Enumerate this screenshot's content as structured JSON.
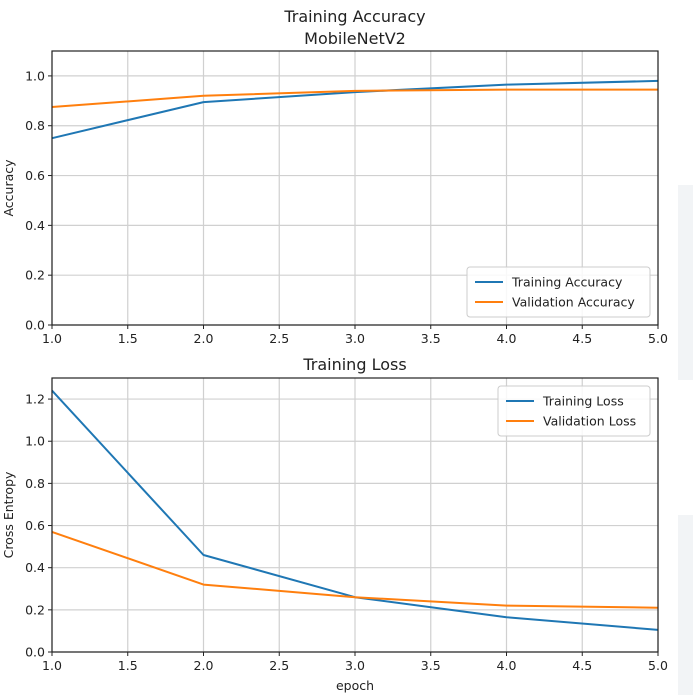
{
  "chart_data": [
    {
      "type": "line",
      "title": "Training Accuracy\nMobileNetV2",
      "title_lines": [
        "Training Accuracy",
        "MobileNetV2"
      ],
      "xlabel": "",
      "ylabel": "Accuracy",
      "xlim": [
        1.0,
        5.0
      ],
      "ylim": [
        0.0,
        1.1
      ],
      "xticks": [
        1.0,
        1.5,
        2.0,
        2.5,
        3.0,
        3.5,
        4.0,
        4.5,
        5.0
      ],
      "xtick_labels": [
        "1.0",
        "1.5",
        "2.0",
        "2.5",
        "3.0",
        "3.5",
        "4.0",
        "4.5",
        "5.0"
      ],
      "yticks": [
        0.0,
        0.2,
        0.4,
        0.6,
        0.8,
        1.0
      ],
      "ytick_labels": [
        "0.0",
        "0.2",
        "0.4",
        "0.6",
        "0.8",
        "1.0"
      ],
      "grid": true,
      "legend_position": "lower-right",
      "x": [
        1,
        2,
        3,
        4,
        5
      ],
      "series": [
        {
          "name": "Training Accuracy",
          "color": "#1f77b4",
          "values": [
            0.75,
            0.895,
            0.935,
            0.965,
            0.98
          ]
        },
        {
          "name": "Validation Accuracy",
          "color": "#ff7f0e",
          "values": [
            0.875,
            0.92,
            0.94,
            0.945,
            0.945
          ]
        }
      ]
    },
    {
      "type": "line",
      "title": "Training Loss",
      "title_lines": [
        "Training Loss"
      ],
      "xlabel": "epoch",
      "ylabel": "Cross Entropy",
      "xlim": [
        1.0,
        5.0
      ],
      "ylim": [
        0.0,
        1.3
      ],
      "xticks": [
        1.0,
        1.5,
        2.0,
        2.5,
        3.0,
        3.5,
        4.0,
        4.5,
        5.0
      ],
      "xtick_labels": [
        "1.0",
        "1.5",
        "2.0",
        "2.5",
        "3.0",
        "3.5",
        "4.0",
        "4.5",
        "5.0"
      ],
      "yticks": [
        0.0,
        0.2,
        0.4,
        0.6,
        0.8,
        1.0,
        1.2
      ],
      "ytick_labels": [
        "0.0",
        "0.2",
        "0.4",
        "0.6",
        "0.8",
        "1.0",
        "1.2"
      ],
      "grid": true,
      "legend_position": "upper-right",
      "x": [
        1,
        2,
        3,
        4,
        5
      ],
      "series": [
        {
          "name": "Training Loss",
          "color": "#1f77b4",
          "values": [
            1.24,
            0.46,
            0.26,
            0.165,
            0.105
          ]
        },
        {
          "name": "Validation Loss",
          "color": "#ff7f0e",
          "values": [
            0.57,
            0.32,
            0.26,
            0.22,
            0.21
          ]
        }
      ]
    }
  ]
}
